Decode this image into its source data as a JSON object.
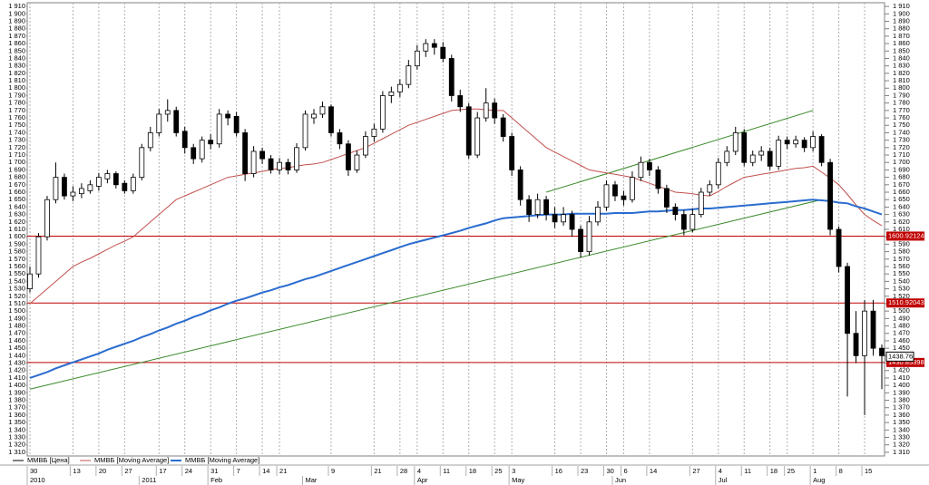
{
  "chart_data": {
    "type": "candlestick",
    "categories": [
      "30",
      null,
      null,
      null,
      null,
      "13",
      null,
      null,
      "20",
      null,
      null,
      "27",
      null,
      null,
      null,
      "17",
      null,
      null,
      "24",
      null,
      null,
      "31",
      null,
      null,
      "7",
      null,
      null,
      "14",
      null,
      "21",
      null,
      null,
      null,
      null,
      null,
      "9",
      null,
      null,
      null,
      null,
      "21",
      null,
      null,
      "28",
      null,
      "4",
      null,
      null,
      "11",
      null,
      null,
      "18",
      null,
      null,
      "25",
      null,
      "3",
      null,
      null,
      null,
      null,
      "16",
      null,
      null,
      "23",
      null,
      null,
      "30",
      null,
      "6",
      null,
      null,
      "14",
      null,
      null,
      null,
      null,
      "27",
      null,
      null,
      "4",
      null,
      null,
      "11",
      null,
      null,
      "18",
      null,
      "25",
      null,
      null,
      "1",
      null,
      null,
      "8",
      null,
      null,
      "15",
      null,
      null
    ],
    "periods": [
      "2010",
      null,
      null,
      null,
      null,
      null,
      null,
      null,
      null,
      null,
      null,
      null,
      null,
      "2011",
      null,
      null,
      null,
      null,
      null,
      null,
      null,
      "Feb",
      null,
      null,
      null,
      null,
      null,
      null,
      null,
      null,
      null,
      null,
      "Mar",
      null,
      null,
      null,
      null,
      null,
      null,
      null,
      null,
      null,
      null,
      null,
      null,
      "Apr",
      null,
      null,
      null,
      null,
      null,
      null,
      null,
      null,
      null,
      null,
      "May",
      null,
      null,
      null,
      null,
      null,
      null,
      null,
      null,
      null,
      null,
      null,
      "Jun",
      null,
      null,
      null,
      null,
      null,
      null,
      null,
      null,
      null,
      null,
      null,
      "Jul",
      null,
      null,
      null,
      null,
      null,
      null,
      null,
      null,
      null,
      null,
      "Aug",
      null,
      null,
      null,
      null,
      null,
      null,
      null,
      null
    ],
    "candles": [
      [
        1530,
        1560,
        1525,
        1550
      ],
      [
        1550,
        1605,
        1545,
        1600
      ],
      [
        1600,
        1655,
        1595,
        1650
      ],
      [
        1650,
        1700,
        1645,
        1680
      ],
      [
        1680,
        1685,
        1650,
        1655
      ],
      [
        1655,
        1668,
        1648,
        1660
      ],
      [
        1658,
        1672,
        1652,
        1665
      ],
      [
        1662,
        1676,
        1658,
        1670
      ],
      [
        1668,
        1686,
        1662,
        1680
      ],
      [
        1678,
        1690,
        1672,
        1685
      ],
      [
        1685,
        1688,
        1665,
        1670
      ],
      [
        1672,
        1676,
        1658,
        1662
      ],
      [
        1662,
        1685,
        1658,
        1680
      ],
      [
        1680,
        1725,
        1676,
        1720
      ],
      [
        1720,
        1748,
        1715,
        1740
      ],
      [
        1740,
        1772,
        1735,
        1765
      ],
      [
        1765,
        1785,
        1755,
        1770
      ],
      [
        1770,
        1775,
        1735,
        1740
      ],
      [
        1742,
        1748,
        1712,
        1720
      ],
      [
        1720,
        1725,
        1698,
        1705
      ],
      [
        1705,
        1735,
        1700,
        1730
      ],
      [
        1730,
        1738,
        1718,
        1725
      ],
      [
        1725,
        1772,
        1720,
        1765
      ],
      [
        1765,
        1770,
        1750,
        1760
      ],
      [
        1762,
        1768,
        1735,
        1740
      ],
      [
        1740,
        1745,
        1675,
        1685
      ],
      [
        1685,
        1722,
        1680,
        1715
      ],
      [
        1715,
        1720,
        1698,
        1705
      ],
      [
        1705,
        1710,
        1685,
        1690
      ],
      [
        1690,
        1706,
        1684,
        1700
      ],
      [
        1700,
        1705,
        1684,
        1690
      ],
      [
        1690,
        1726,
        1686,
        1720
      ],
      [
        1720,
        1770,
        1716,
        1765
      ],
      [
        1760,
        1772,
        1752,
        1765
      ],
      [
        1765,
        1782,
        1760,
        1775
      ],
      [
        1775,
        1778,
        1735,
        1740
      ],
      [
        1740,
        1745,
        1718,
        1725
      ],
      [
        1725,
        1730,
        1682,
        1690
      ],
      [
        1690,
        1716,
        1686,
        1710
      ],
      [
        1710,
        1742,
        1706,
        1735
      ],
      [
        1735,
        1752,
        1728,
        1745
      ],
      [
        1745,
        1796,
        1740,
        1790
      ],
      [
        1790,
        1802,
        1780,
        1795
      ],
      [
        1795,
        1812,
        1788,
        1805
      ],
      [
        1805,
        1838,
        1800,
        1830
      ],
      [
        1830,
        1858,
        1825,
        1850
      ],
      [
        1850,
        1866,
        1842,
        1860
      ],
      [
        1860,
        1866,
        1845,
        1855
      ],
      [
        1855,
        1862,
        1835,
        1840
      ],
      [
        1840,
        1845,
        1782,
        1790
      ],
      [
        1790,
        1798,
        1768,
        1775
      ],
      [
        1775,
        1780,
        1705,
        1710
      ],
      [
        1710,
        1768,
        1706,
        1760
      ],
      [
        1760,
        1800,
        1755,
        1780
      ],
      [
        1780,
        1786,
        1752,
        1760
      ],
      [
        1760,
        1765,
        1728,
        1735
      ],
      [
        1735,
        1740,
        1682,
        1690
      ],
      [
        1690,
        1695,
        1642,
        1650
      ],
      [
        1650,
        1656,
        1620,
        1630
      ],
      [
        1630,
        1658,
        1625,
        1650
      ],
      [
        1650,
        1655,
        1622,
        1630
      ],
      [
        1630,
        1640,
        1612,
        1620
      ],
      [
        1620,
        1640,
        1615,
        1630
      ],
      [
        1630,
        1635,
        1600,
        1610
      ],
      [
        1610,
        1615,
        1572,
        1580
      ],
      [
        1580,
        1628,
        1575,
        1620
      ],
      [
        1620,
        1648,
        1615,
        1640
      ],
      [
        1640,
        1676,
        1635,
        1670
      ],
      [
        1670,
        1675,
        1648,
        1655
      ],
      [
        1655,
        1662,
        1642,
        1650
      ],
      [
        1650,
        1688,
        1646,
        1680
      ],
      [
        1680,
        1708,
        1675,
        1700
      ],
      [
        1700,
        1705,
        1682,
        1690
      ],
      [
        1690,
        1695,
        1658,
        1665
      ],
      [
        1665,
        1670,
        1632,
        1640
      ],
      [
        1640,
        1645,
        1622,
        1630
      ],
      [
        1630,
        1636,
        1602,
        1610
      ],
      [
        1610,
        1638,
        1606,
        1630
      ],
      [
        1630,
        1666,
        1626,
        1660
      ],
      [
        1660,
        1676,
        1655,
        1670
      ],
      [
        1670,
        1706,
        1665,
        1700
      ],
      [
        1700,
        1722,
        1695,
        1715
      ],
      [
        1715,
        1748,
        1710,
        1740
      ],
      [
        1740,
        1745,
        1695,
        1700
      ],
      [
        1700,
        1716,
        1695,
        1710
      ],
      [
        1710,
        1722,
        1702,
        1715
      ],
      [
        1715,
        1720,
        1690,
        1695
      ],
      [
        1695,
        1736,
        1690,
        1730
      ],
      [
        1730,
        1735,
        1718,
        1725
      ],
      [
        1725,
        1736,
        1720,
        1730
      ],
      [
        1730,
        1734,
        1714,
        1720
      ],
      [
        1720,
        1742,
        1715,
        1735
      ],
      [
        1735,
        1738,
        1695,
        1700
      ],
      [
        1700,
        1705,
        1602,
        1610
      ],
      [
        1610,
        1614,
        1552,
        1560
      ],
      [
        1560,
        1565,
        1385,
        1470
      ],
      [
        1470,
        1500,
        1430,
        1440
      ],
      [
        1440,
        1515,
        1360,
        1500
      ],
      [
        1500,
        1515,
        1440,
        1450
      ],
      [
        1450,
        1455,
        1395,
        1440
      ]
    ],
    "price_name": "ММВБ [Цена]",
    "price_color": "#000000",
    "series": [
      {
        "name": "ММВБ [Moving Average]",
        "color": "#c0504d",
        "width": 1,
        "values": [
          1510,
          1520,
          1530,
          1540,
          1550,
          1560,
          1566,
          1571,
          1577,
          1583,
          1589,
          1594,
          1600,
          1610,
          1620,
          1630,
          1640,
          1650,
          1655,
          1660,
          1665,
          1670,
          1675,
          1680,
          1682,
          1684,
          1686,
          1688,
          1690,
          1692,
          1693,
          1695,
          1697,
          1698,
          1700,
          1704,
          1708,
          1712,
          1716,
          1720,
          1726,
          1732,
          1738,
          1744,
          1750,
          1754,
          1758,
          1762,
          1766,
          1770,
          1771,
          1772,
          1772,
          1771,
          1770,
          1770,
          1760,
          1750,
          1740,
          1730,
          1720,
          1714,
          1708,
          1702,
          1696,
          1690,
          1688,
          1686,
          1684,
          1682,
          1680,
          1676,
          1672,
          1668,
          1664,
          1660,
          1659,
          1658,
          1656,
          1655,
          1661,
          1668,
          1674,
          1680,
          1682,
          1684,
          1686,
          1688,
          1690,
          1692,
          1693,
          1695,
          1687,
          1679,
          1670,
          1657,
          1643,
          1630,
          1622,
          1615
        ]
      },
      {
        "name": "ММВБ [Moving Average]",
        "color": "#2a6ccf",
        "width": 2,
        "values": [
          1410,
          1414,
          1418,
          1423,
          1427,
          1431,
          1435,
          1439,
          1443,
          1448,
          1452,
          1456,
          1460,
          1465,
          1469,
          1474,
          1478,
          1483,
          1487,
          1492,
          1496,
          1501,
          1505,
          1510,
          1514,
          1517,
          1521,
          1525,
          1528,
          1532,
          1535,
          1539,
          1543,
          1546,
          1550,
          1554,
          1558,
          1562,
          1566,
          1570,
          1574,
          1578,
          1582,
          1586,
          1590,
          1593,
          1596,
          1599,
          1602,
          1605,
          1608,
          1612,
          1615,
          1618,
          1622,
          1625,
          1626,
          1627,
          1628,
          1629,
          1630,
          1630,
          1630,
          1631,
          1631,
          1631,
          1631,
          1631,
          1632,
          1632,
          1632,
          1633,
          1634,
          1634,
          1635,
          1636,
          1636,
          1637,
          1638,
          1638,
          1639,
          1640,
          1641,
          1642,
          1643,
          1644,
          1645,
          1646,
          1647,
          1648,
          1649,
          1650,
          1649,
          1648,
          1646,
          1645,
          1641,
          1638,
          1634,
          1630
        ]
      }
    ],
    "trendlines": [
      {
        "color": "#3a8a2a",
        "x": [
          0,
          92
        ],
        "y": [
          1395,
          1650
        ]
      },
      {
        "color": "#3a8a2a",
        "x": [
          60,
          91
        ],
        "y": [
          1660,
          1770
        ]
      }
    ],
    "levels": [
      {
        "value": 1600.92124,
        "color": "#c00000"
      },
      {
        "value": 1510.92043,
        "color": "#c00000"
      },
      {
        "value": 1430.85398,
        "color": "#c00000"
      }
    ],
    "last_price": 1438.76,
    "ylim": [
      1305,
      1915
    ],
    "yticks": [
      {
        "value": 1310,
        "label": "1 310"
      },
      {
        "value": 1320,
        "label": "1 320"
      },
      {
        "value": 1330,
        "label": "1 330"
      },
      {
        "value": 1340,
        "label": "1 340"
      },
      {
        "value": 1350,
        "label": "1 350"
      },
      {
        "value": 1360,
        "label": "1 360"
      },
      {
        "value": 1370,
        "label": "1 370"
      },
      {
        "value": 1380,
        "label": "1 380"
      },
      {
        "value": 1390,
        "label": "1 390"
      },
      {
        "value": 1400,
        "label": "1 400"
      },
      {
        "value": 1410,
        "label": "1 410"
      },
      {
        "value": 1420,
        "label": "1 420"
      },
      {
        "value": 1430,
        "label": "1 430"
      },
      {
        "value": 1440,
        "label": "1 440"
      },
      {
        "value": 1450,
        "label": "1 450"
      },
      {
        "value": 1460,
        "label": "1 460"
      },
      {
        "value": 1470,
        "label": "1 470"
      },
      {
        "value": 1480,
        "label": "1 480"
      },
      {
        "value": 1490,
        "label": "1 490"
      },
      {
        "value": 1500,
        "label": "1 500"
      },
      {
        "value": 1510,
        "label": "1 510"
      },
      {
        "value": 1520,
        "label": "1 520"
      },
      {
        "value": 1530,
        "label": "1 530"
      },
      {
        "value": 1540,
        "label": "1 540"
      },
      {
        "value": 1550,
        "label": "1 550"
      },
      {
        "value": 1560,
        "label": "1 560"
      },
      {
        "value": 1570,
        "label": "1 570"
      },
      {
        "value": 1580,
        "label": "1 580"
      },
      {
        "value": 1590,
        "label": "1 590"
      },
      {
        "value": 1600,
        "label": "1 600"
      },
      {
        "value": 1610,
        "label": "1 610"
      },
      {
        "value": 1620,
        "label": "1 620"
      },
      {
        "value": 1630,
        "label": "1 630"
      },
      {
        "value": 1640,
        "label": "1 640"
      },
      {
        "value": 1650,
        "label": "1 650"
      },
      {
        "value": 1660,
        "label": "1 660"
      },
      {
        "value": 1670,
        "label": "1 670"
      },
      {
        "value": 1680,
        "label": "1 680"
      },
      {
        "value": 1690,
        "label": "1 690"
      },
      {
        "value": 1700,
        "label": "1 700"
      },
      {
        "value": 1710,
        "label": "1 710"
      },
      {
        "value": 1720,
        "label": "1 720"
      },
      {
        "value": 1730,
        "label": "1 730"
      },
      {
        "value": 1740,
        "label": "1 740"
      },
      {
        "value": 1750,
        "label": "1 750"
      },
      {
        "value": 1760,
        "label": "1 760"
      },
      {
        "value": 1770,
        "label": "1 770"
      },
      {
        "value": 1780,
        "label": "1 780"
      },
      {
        "value": 1790,
        "label": "1 790"
      },
      {
        "value": 1800,
        "label": "1 800"
      },
      {
        "value": 1810,
        "label": "1 810"
      },
      {
        "value": 1820,
        "label": "1 820"
      },
      {
        "value": 1830,
        "label": "1 830"
      },
      {
        "value": 1840,
        "label": "1 840"
      },
      {
        "value": 1850,
        "label": "1 850"
      },
      {
        "value": 1860,
        "label": "1 860"
      },
      {
        "value": 1870,
        "label": "1 870"
      },
      {
        "value": 1880,
        "label": "1 880"
      },
      {
        "value": 1890,
        "label": "1 890"
      },
      {
        "value": 1900,
        "label": "1 900"
      },
      {
        "value": 1910,
        "label": "1 910"
      }
    ],
    "grid": true
  }
}
